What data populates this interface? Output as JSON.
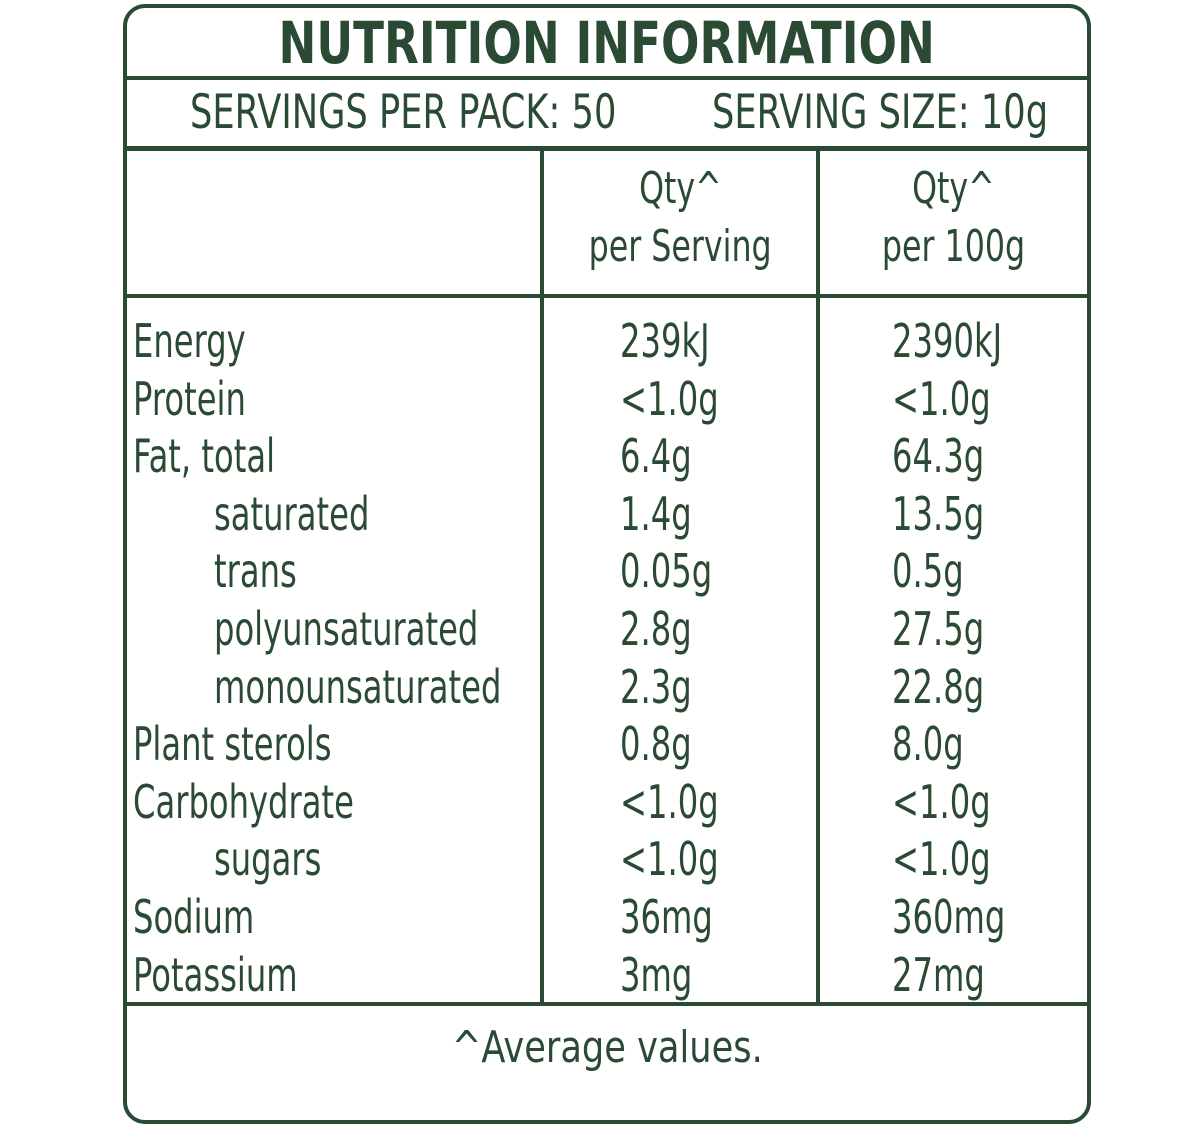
{
  "label": {
    "title": "NUTRITION INFORMATION",
    "servings_per_pack": "SERVINGS PER PACK: 50",
    "serving_size": "SERVING SIZE: 10g",
    "columns": [
      {
        "line1": "Qty^",
        "line2": "per Serving"
      },
      {
        "line1": "Qty^",
        "line2": "per 100g"
      }
    ],
    "rows": [
      {
        "name": "Energy",
        "indent": false,
        "per_serving": "239kJ",
        "per_100g": "2390kJ"
      },
      {
        "name": "Protein",
        "indent": false,
        "per_serving": "<1.0g",
        "per_100g": "<1.0g"
      },
      {
        "name": "Fat, total",
        "indent": false,
        "per_serving": "6.4g",
        "per_100g": "64.3g"
      },
      {
        "name": "saturated",
        "indent": true,
        "per_serving": "1.4g",
        "per_100g": "13.5g"
      },
      {
        "name": "trans",
        "indent": true,
        "per_serving": "0.05g",
        "per_100g": "0.5g"
      },
      {
        "name": "polyunsaturated",
        "indent": true,
        "per_serving": "2.8g",
        "per_100g": "27.5g"
      },
      {
        "name": "monounsaturated",
        "indent": true,
        "per_serving": "2.3g",
        "per_100g": "22.8g"
      },
      {
        "name": "Plant sterols",
        "indent": false,
        "per_serving": "0.8g",
        "per_100g": "8.0g"
      },
      {
        "name": "Carbohydrate",
        "indent": false,
        "per_serving": "<1.0g",
        "per_100g": "<1.0g"
      },
      {
        "name": "sugars",
        "indent": true,
        "per_serving": "<1.0g",
        "per_100g": "<1.0g"
      },
      {
        "name": "Sodium",
        "indent": false,
        "per_serving": "36mg",
        "per_100g": "360mg"
      },
      {
        "name": "Potassium",
        "indent": false,
        "per_serving": "3mg",
        "per_100g": "27mg"
      }
    ],
    "footnote": "^Average values.",
    "colors": {
      "ink": "#2a4a34",
      "background": "#ffffff"
    }
  }
}
